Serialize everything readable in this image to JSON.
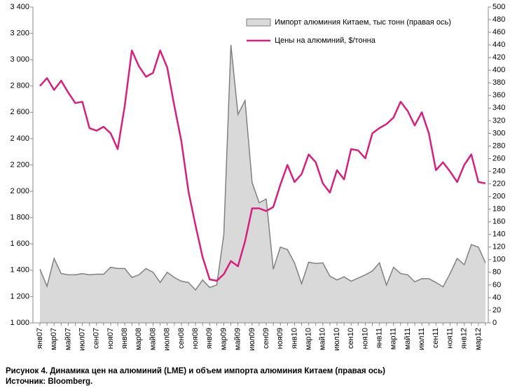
{
  "chart_data": {
    "type": "combo",
    "categories": [
      "янв07",
      null,
      "мар07",
      null,
      "май07",
      null,
      "июл07",
      null,
      "сен07",
      null,
      "ноя07",
      null,
      "янв08",
      null,
      "мар08",
      null,
      "май08",
      null,
      "июл08",
      null,
      "сен08",
      null,
      "ноя08",
      null,
      "янв09",
      null,
      "мар09",
      null,
      "май09",
      null,
      "июл09",
      null,
      "сен09",
      null,
      "ноя09",
      null,
      "янв10",
      null,
      "мар10",
      null,
      "май10",
      null,
      "июл10",
      null,
      "сен10",
      null,
      "ноя10",
      null,
      "янв11",
      null,
      "мар11",
      null,
      "май11",
      null,
      "июл11",
      null,
      "сен11",
      null,
      "ноя11",
      null,
      "янв12",
      null,
      "мар12",
      null
    ],
    "series": [
      {
        "name": "Импорт алюминия Китаем, тыс тонн (правая ось)",
        "type": "area",
        "axis": "y2",
        "color": "#d9d9d9",
        "stroke": "#808080",
        "values": [
          85,
          58,
          102,
          78,
          76,
          76,
          78,
          76,
          77,
          77,
          88,
          86,
          86,
          72,
          76,
          86,
          80,
          64,
          80,
          72,
          66,
          64,
          52,
          68,
          56,
          60,
          140,
          440,
          330,
          352,
          222,
          190,
          196,
          85,
          120,
          116,
          95,
          62,
          96,
          94,
          95,
          74,
          68,
          73,
          66,
          71,
          76,
          82,
          95,
          60,
          88,
          78,
          76,
          65,
          70,
          70,
          64,
          57,
          78,
          102,
          92,
          124,
          120,
          95
        ]
      },
      {
        "name": "Цены на алюминий, $/тонна",
        "type": "line",
        "axis": "y",
        "color": "#d4217d",
        "values": [
          2800,
          2860,
          2770,
          2840,
          2750,
          2670,
          2680,
          2480,
          2460,
          2490,
          2440,
          2320,
          2650,
          3070,
          2950,
          2870,
          2900,
          3070,
          2940,
          2650,
          2380,
          2000,
          1740,
          1500,
          1330,
          1320,
          1370,
          1470,
          1430,
          1620,
          1870,
          1870,
          1850,
          1880,
          2050,
          2200,
          2070,
          2130,
          2280,
          2220,
          2060,
          1990,
          2160,
          2090,
          2320,
          2310,
          2250,
          2440,
          2480,
          2510,
          2560,
          2680,
          2610,
          2500,
          2600,
          2440,
          2160,
          2220,
          2150,
          2070,
          2200,
          2280,
          2070,
          2060
        ]
      }
    ],
    "ylim": [
      1000,
      3400
    ],
    "yticks": [
      {
        "value": 1000,
        "label": "1 000"
      },
      {
        "value": 1200,
        "label": "1 200"
      },
      {
        "value": 1400,
        "label": "1 400"
      },
      {
        "value": 1600,
        "label": "1 600"
      },
      {
        "value": 1800,
        "label": "1 800"
      },
      {
        "value": 2000,
        "label": "2 000"
      },
      {
        "value": 2200,
        "label": "2 200"
      },
      {
        "value": 2400,
        "label": "2 400"
      },
      {
        "value": 2600,
        "label": "2 600"
      },
      {
        "value": 2800,
        "label": "2 800"
      },
      {
        "value": 3000,
        "label": "3 000"
      },
      {
        "value": 3200,
        "label": "3 200"
      },
      {
        "value": 3400,
        "label": "3 400"
      }
    ],
    "y2lim": [
      0,
      500
    ],
    "y2ticks": [
      0,
      20,
      40,
      60,
      80,
      100,
      120,
      140,
      160,
      180,
      200,
      220,
      240,
      260,
      280,
      300,
      320,
      340,
      360,
      380,
      400,
      420,
      440,
      460,
      480,
      500
    ],
    "grid": false,
    "legend": "top-right",
    "caption": "Рисунок 4. Динамика цен на алюминий (LME) и объем импорта алюминия Китаем (правая ось)",
    "source": "Источник: Bloomberg."
  }
}
